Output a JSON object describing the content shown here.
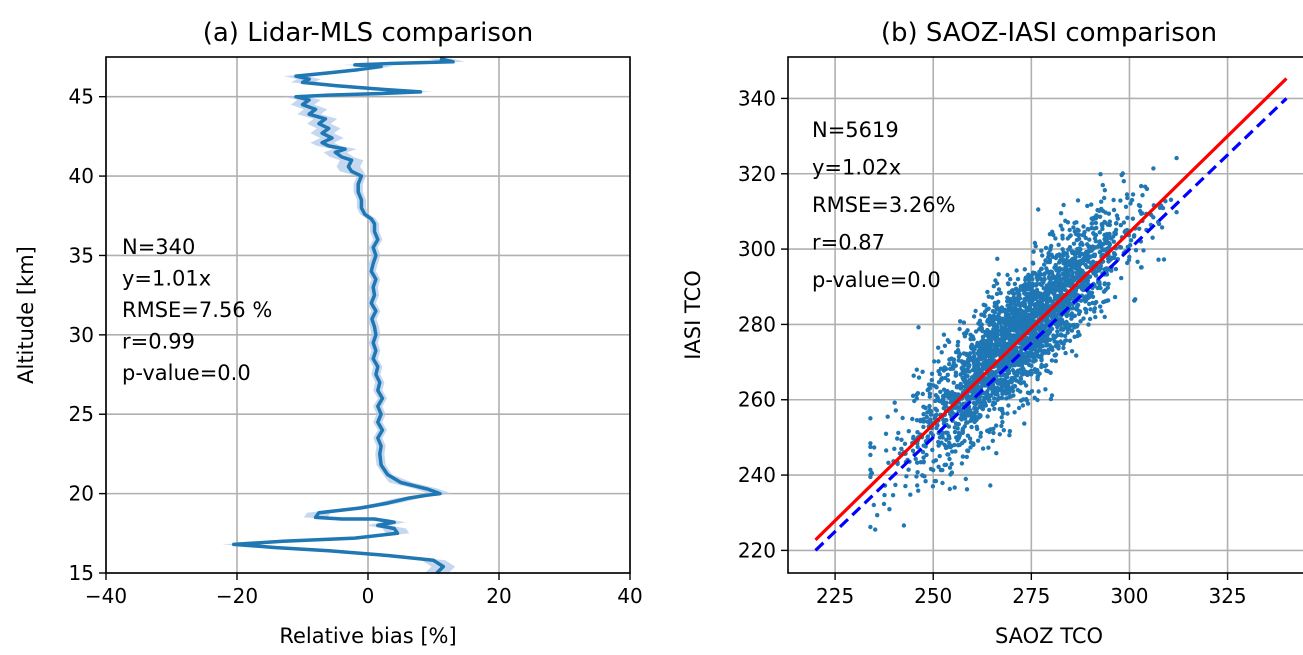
{
  "chart_data": [
    {
      "type": "line",
      "title": "(a) Lidar-MLS comparison",
      "xlabel": "Relative bias [%]",
      "ylabel": "Altitude [km]",
      "xlim": [
        -40,
        40
      ],
      "ylim": [
        15,
        47.5
      ],
      "xticks": [
        -40,
        -20,
        0,
        20,
        40
      ],
      "yticks": [
        15,
        20,
        25,
        30,
        35,
        40,
        45
      ],
      "grid": true,
      "series": [
        {
          "color": "#1f77b4",
          "band_color": "#aec7e8",
          "points": [
            [
              10.5,
              15.0
            ],
            [
              11.5,
              15.4
            ],
            [
              10.0,
              15.8
            ],
            [
              3.0,
              16.1
            ],
            [
              -6.0,
              16.4
            ],
            [
              -14.0,
              16.6
            ],
            [
              -20.5,
              16.8
            ],
            [
              -13.0,
              17.0
            ],
            [
              -2.0,
              17.2
            ],
            [
              4.5,
              17.5
            ],
            [
              4.0,
              17.8
            ],
            [
              1.5,
              18.0
            ],
            [
              4.0,
              18.2
            ],
            [
              1.0,
              18.4
            ],
            [
              -4.0,
              18.4
            ],
            [
              -8.0,
              18.5
            ],
            [
              -7.5,
              18.8
            ],
            [
              -1.0,
              19.1
            ],
            [
              3.0,
              19.4
            ],
            [
              6.0,
              19.7
            ],
            [
              9.0,
              19.9
            ],
            [
              11.0,
              20.0
            ],
            [
              9.0,
              20.3
            ],
            [
              5.0,
              20.7
            ],
            [
              3.0,
              21.2
            ],
            [
              2.0,
              21.8
            ],
            [
              1.8,
              22.5
            ],
            [
              2.0,
              23.0
            ],
            [
              1.5,
              23.5
            ],
            [
              2.2,
              24.0
            ],
            [
              1.5,
              24.5
            ],
            [
              2.0,
              25.0
            ],
            [
              1.5,
              25.5
            ],
            [
              2.2,
              26.0
            ],
            [
              1.5,
              26.5
            ],
            [
              1.8,
              27.0
            ],
            [
              1.2,
              27.5
            ],
            [
              1.5,
              28.0
            ],
            [
              0.8,
              28.5
            ],
            [
              1.2,
              29.0
            ],
            [
              0.8,
              29.5
            ],
            [
              1.2,
              30.0
            ],
            [
              1.0,
              30.5
            ],
            [
              0.6,
              31.0
            ],
            [
              1.2,
              31.5
            ],
            [
              0.5,
              32.0
            ],
            [
              1.0,
              32.5
            ],
            [
              0.8,
              33.0
            ],
            [
              1.2,
              33.5
            ],
            [
              0.5,
              34.0
            ],
            [
              0.8,
              34.5
            ],
            [
              1.2,
              35.0
            ],
            [
              0.8,
              35.5
            ],
            [
              1.5,
              36.0
            ],
            [
              1.0,
              36.5
            ],
            [
              1.0,
              37.0
            ],
            [
              0.5,
              37.3
            ],
            [
              -0.5,
              37.6
            ],
            [
              -1.0,
              38.0
            ],
            [
              -1.0,
              38.5
            ],
            [
              -1.5,
              39.0
            ],
            [
              -1.5,
              39.5
            ],
            [
              -1.0,
              40.0
            ],
            [
              -2.5,
              40.3
            ],
            [
              -3.0,
              40.6
            ],
            [
              -2.5,
              41.0
            ],
            [
              -4.0,
              41.2
            ],
            [
              -5.0,
              41.5
            ],
            [
              -3.5,
              41.7
            ],
            [
              -6.0,
              41.9
            ],
            [
              -7.0,
              42.1
            ],
            [
              -5.5,
              42.4
            ],
            [
              -7.0,
              42.7
            ],
            [
              -6.0,
              43.0
            ],
            [
              -7.5,
              43.3
            ],
            [
              -6.5,
              43.6
            ],
            [
              -9.0,
              43.9
            ],
            [
              -8.0,
              44.2
            ],
            [
              -10.0,
              44.5
            ],
            [
              -9.0,
              44.8
            ],
            [
              -11.0,
              45.0
            ],
            [
              -6.0,
              45.1
            ],
            [
              2.0,
              45.2
            ],
            [
              8.0,
              45.3
            ],
            [
              1.0,
              45.5
            ],
            [
              -5.0,
              45.7
            ],
            [
              -10.0,
              45.9
            ],
            [
              -9.0,
              46.1
            ],
            [
              -11.0,
              46.3
            ],
            [
              -6.0,
              46.5
            ],
            [
              -1.5,
              46.7
            ],
            [
              2.0,
              46.9
            ],
            [
              -2.0,
              47.0
            ],
            [
              4.0,
              47.1
            ],
            [
              13.0,
              47.2
            ],
            [
              11.0,
              47.4
            ]
          ]
        }
      ],
      "annotation": [
        "N=340",
        "y=1.01x",
        "RMSE=7.56 %",
        "r=0.99",
        "p-value=0.0"
      ]
    },
    {
      "type": "scatter",
      "title": "(b) SAOZ-IASI comparison",
      "xlabel": "SAOZ TCO",
      "ylabel": "IASI TCO",
      "xlim": [
        213,
        346
      ],
      "ylim": [
        214,
        351
      ],
      "xticks": [
        225,
        250,
        275,
        300,
        325
      ],
      "yticks": [
        220,
        240,
        260,
        280,
        300,
        320,
        340
      ],
      "grid": true,
      "point_count": 5619,
      "point_color": "#1f77b4",
      "cloud_center": [
        272,
        277
      ],
      "cloud_x_range": [
        234,
        312
      ],
      "series": [
        {
          "kind": "fit",
          "color": "#ff0000",
          "style": "solid",
          "x": [
            220,
            340
          ],
          "y": [
            222.8,
            345.3
          ]
        },
        {
          "kind": "one-to-one",
          "color": "#0000ff",
          "style": "dashed",
          "x": [
            220,
            340
          ],
          "y": [
            220,
            340
          ]
        }
      ],
      "annotation": [
        "N=5619",
        "y=1.02x",
        "RMSE=3.26%",
        "r=0.87",
        "p-value=0.0"
      ]
    }
  ]
}
